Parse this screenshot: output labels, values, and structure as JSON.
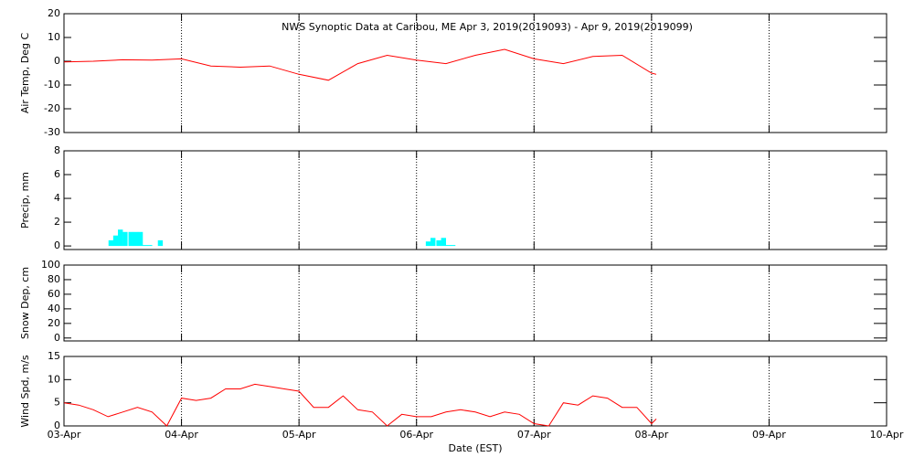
{
  "chart_data": [
    {
      "type": "line",
      "title": "NWS Synoptic Data at Caribou, ME   Apr  3, 2019(2019093) - Apr  9, 2019(2019099)",
      "y_label": "Air Temp, Deg C",
      "x": [
        0,
        0.25,
        0.5,
        0.75,
        1.0,
        1.25,
        1.5,
        1.75,
        2.0,
        2.25,
        2.5,
        2.75,
        3.0,
        3.25,
        3.5,
        3.75,
        4.0,
        4.25,
        4.5,
        4.75,
        5.0,
        5.04
      ],
      "series": [
        {
          "color": "#ff0000",
          "values": [
            -0.3,
            0,
            0.6,
            0.5,
            1,
            -2,
            -2.5,
            -2,
            -5.5,
            -8,
            -1,
            2.5,
            0.5,
            -1,
            2.5,
            5,
            1,
            -1,
            2,
            2.5,
            -5,
            -5.5
          ]
        }
      ],
      "xlim": [
        0,
        7
      ],
      "xticks": [
        0,
        1,
        2,
        3,
        4,
        5,
        6,
        7
      ],
      "ylim": [
        -30,
        20
      ],
      "yticks": [
        -30,
        -20,
        -10,
        0,
        10,
        20
      ],
      "grid": true
    },
    {
      "type": "bar",
      "y_label": "Precip, mm",
      "x": [
        0.4,
        0.44,
        0.48,
        0.52,
        0.57,
        0.61,
        0.65,
        0.69,
        0.73,
        0.82,
        3.1,
        3.14,
        3.19,
        3.23,
        3.27,
        3.31
      ],
      "series": [
        {
          "color": "#00ffff",
          "values": [
            0.4,
            0.8,
            1.3,
            1.1,
            1.1,
            1.1,
            1.1,
            0,
            0,
            0.4,
            0.3,
            0.6,
            0.4,
            0.6,
            0,
            0
          ]
        }
      ],
      "xlim": [
        0,
        7
      ],
      "xticks": [
        0,
        1,
        2,
        3,
        4,
        5,
        6,
        7
      ],
      "ylim": [
        -0.3,
        8
      ],
      "yticks": [
        0,
        2,
        4,
        6,
        8
      ],
      "grid": true
    },
    {
      "type": "line",
      "y_label": "Snow Dep, cm",
      "x": [],
      "series": [
        {
          "color": "#ff0000",
          "values": []
        }
      ],
      "xlim": [
        0,
        7
      ],
      "xticks": [
        0,
        1,
        2,
        3,
        4,
        5,
        6,
        7
      ],
      "ylim": [
        -4,
        100
      ],
      "yticks": [
        0,
        20,
        40,
        60,
        80,
        100
      ],
      "grid": true
    },
    {
      "type": "line",
      "y_label": "Wind Spd, m/s",
      "x_label": "Date (EST)",
      "x": [
        0,
        0.125,
        0.25,
        0.375,
        0.5,
        0.625,
        0.75,
        0.875,
        1.0,
        1.125,
        1.25,
        1.375,
        1.5,
        1.625,
        1.75,
        1.875,
        2.0,
        2.125,
        2.25,
        2.375,
        2.5,
        2.625,
        2.75,
        2.875,
        3.0,
        3.125,
        3.25,
        3.375,
        3.5,
        3.625,
        3.75,
        3.875,
        4.0,
        4.125,
        4.25,
        4.375,
        4.5,
        4.625,
        4.75,
        4.875,
        5.0,
        5.04
      ],
      "series": [
        {
          "color": "#ff0000",
          "values": [
            5,
            4.5,
            3.5,
            2,
            3,
            4,
            3,
            0,
            6,
            5.5,
            6,
            8,
            8,
            9,
            8.5,
            8,
            7.5,
            4,
            4,
            6.5,
            3.5,
            3,
            0,
            2.5,
            2,
            2,
            3,
            3.5,
            3,
            2,
            3,
            2.5,
            0.5,
            0,
            5,
            4.5,
            6.5,
            6,
            4,
            4,
            0.5,
            1.5
          ]
        }
      ],
      "xlim": [
        0,
        7
      ],
      "xticks": [
        {
          "value": 0,
          "label": "03-Apr"
        },
        {
          "value": 1,
          "label": "04-Apr"
        },
        {
          "value": 2,
          "label": "05-Apr"
        },
        {
          "value": 3,
          "label": "06-Apr"
        },
        {
          "value": 4,
          "label": "07-Apr"
        },
        {
          "value": 5,
          "label": "08-Apr"
        },
        {
          "value": 6,
          "label": "09-Apr"
        },
        {
          "value": 7,
          "label": "10-Apr"
        }
      ],
      "ylim": [
        0,
        15
      ],
      "yticks": [
        0,
        5,
        10,
        15
      ],
      "grid": true
    }
  ]
}
